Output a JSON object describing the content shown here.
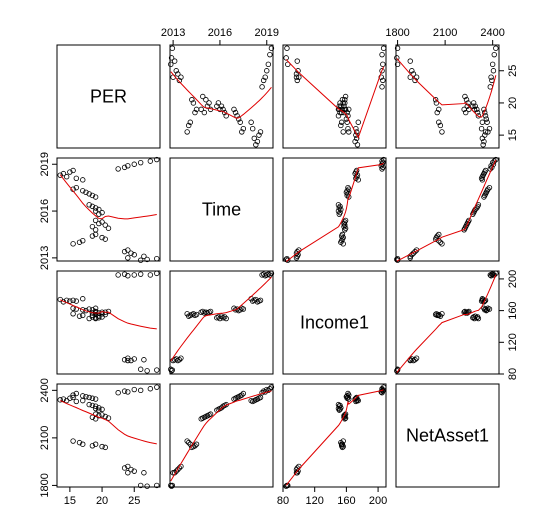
{
  "chart_data": {
    "type": "scatter",
    "title": "",
    "variables": [
      {
        "name": "PER",
        "range": [
          13.0,
          29.0
        ],
        "ticks": [
          15,
          20,
          25
        ],
        "tick_labels": [
          "15",
          "20",
          "25"
        ]
      },
      {
        "name": "Time",
        "range": [
          2012.8,
          2019.4
        ],
        "ticks": [
          2013,
          2016,
          2019
        ],
        "tick_labels": [
          "2013",
          "2016",
          "2019"
        ]
      },
      {
        "name": "Income1",
        "range": [
          80,
          210
        ],
        "ticks": [
          80,
          120,
          160,
          200
        ],
        "tick_labels": [
          "80",
          "120",
          "160",
          "200"
        ]
      },
      {
        "name": "NetAsset1",
        "range": [
          1790,
          2440
        ],
        "ticks": [
          1800,
          2100,
          2400
        ],
        "tick_labels": [
          "1800",
          "2100",
          "2400"
        ]
      }
    ],
    "points": [
      [
        28.5,
        2019.3,
        207,
        2420
      ],
      [
        27.5,
        2019.2,
        205,
        2410
      ],
      [
        26.0,
        2019.1,
        206,
        2400
      ],
      [
        25.0,
        2019.0,
        205,
        2405
      ],
      [
        24.0,
        2018.9,
        204,
        2390
      ],
      [
        23.5,
        2018.8,
        206,
        2395
      ],
      [
        22.5,
        2018.7,
        205,
        2385
      ],
      [
        15.5,
        2018.6,
        173,
        2355
      ],
      [
        15.0,
        2018.5,
        172,
        2350
      ],
      [
        14.0,
        2018.4,
        171,
        2345
      ],
      [
        13.5,
        2018.3,
        174,
        2340
      ],
      [
        14.5,
        2018.2,
        173,
        2335
      ],
      [
        16.0,
        2018.1,
        172,
        2330
      ],
      [
        17.0,
        2018.0,
        175,
        2335
      ],
      [
        16.0,
        2017.5,
        162,
        2380
      ],
      [
        15.5,
        2017.4,
        163,
        2370
      ],
      [
        17.0,
        2017.3,
        161,
        2365
      ],
      [
        17.5,
        2017.2,
        160,
        2360
      ],
      [
        18.0,
        2017.1,
        162,
        2355
      ],
      [
        18.5,
        2017.0,
        161,
        2350
      ],
      [
        19.0,
        2016.9,
        163,
        2345
      ],
      [
        18.0,
        2016.4,
        150,
        2310
      ],
      [
        18.5,
        2016.3,
        152,
        2305
      ],
      [
        19.0,
        2016.2,
        151,
        2300
      ],
      [
        19.5,
        2016.1,
        153,
        2290
      ],
      [
        19.0,
        2016.0,
        150,
        2285
      ],
      [
        20.0,
        2015.9,
        152,
        2280
      ],
      [
        19.5,
        2015.8,
        151,
        2275
      ],
      [
        19.0,
        2015.4,
        159,
        2250
      ],
      [
        20.0,
        2015.3,
        158,
        2245
      ],
      [
        19.5,
        2015.2,
        157,
        2240
      ],
      [
        20.5,
        2015.1,
        158,
        2235
      ],
      [
        18.5,
        2015.0,
        157,
        2230
      ],
      [
        21.0,
        2014.9,
        159,
        2225
      ],
      [
        19.0,
        2014.8,
        158,
        2220
      ],
      [
        19.0,
        2014.5,
        155,
        2060
      ],
      [
        18.5,
        2014.4,
        154,
        2050
      ],
      [
        20.0,
        2014.3,
        156,
        2045
      ],
      [
        20.5,
        2014.2,
        155,
        2040
      ],
      [
        17.0,
        2014.1,
        154,
        2060
      ],
      [
        16.5,
        2014.0,
        153,
        2070
      ],
      [
        15.5,
        2013.9,
        156,
        2080
      ],
      [
        24.0,
        2013.5,
        100,
        1920
      ],
      [
        23.5,
        2013.4,
        98,
        1910
      ],
      [
        24.5,
        2013.3,
        97,
        1900
      ],
      [
        25.0,
        2013.2,
        99,
        1890
      ],
      [
        26.5,
        2013.1,
        98,
        1880
      ],
      [
        24.0,
        2013.0,
        97,
        1880
      ],
      [
        28.5,
        2012.95,
        85,
        1800
      ],
      [
        27.0,
        2012.9,
        84,
        1795
      ],
      [
        26.0,
        2012.85,
        86,
        1800
      ]
    ]
  }
}
